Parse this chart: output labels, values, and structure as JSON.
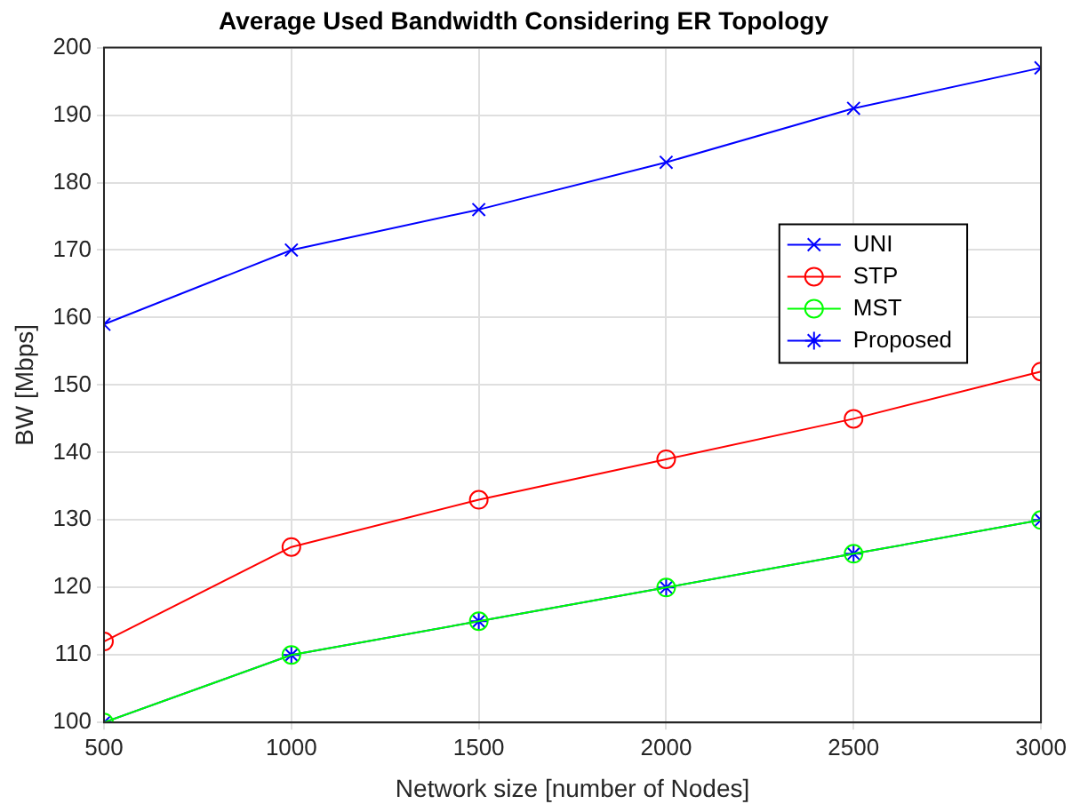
{
  "chart_data": {
    "type": "line",
    "title": "Average Used Bandwidth Considering ER Topology",
    "xlabel": "Network size [number of Nodes]",
    "ylabel": "BW [Mbps]",
    "x": [
      500,
      1000,
      1500,
      2000,
      2500,
      3000
    ],
    "xlim": [
      500,
      3000
    ],
    "xticks": [
      500,
      1000,
      1500,
      2000,
      2500,
      3000
    ],
    "ylim": [
      100,
      200
    ],
    "yticks": [
      100,
      110,
      120,
      130,
      140,
      150,
      160,
      170,
      180,
      190,
      200
    ],
    "grid": true,
    "legend": "right",
    "series": [
      {
        "name": "UNI",
        "color": "#0000ff",
        "marker": "cross",
        "values": [
          159,
          170,
          176,
          183,
          191,
          197
        ]
      },
      {
        "name": "STP",
        "color": "#ff0000",
        "marker": "circle",
        "values": [
          112,
          126,
          133,
          139,
          145,
          152
        ]
      },
      {
        "name": "MST",
        "color": "#00ff00",
        "marker": "circle",
        "values": [
          100,
          110,
          115,
          120,
          125,
          130
        ]
      },
      {
        "name": "Proposed",
        "color": "#0000ff",
        "marker": "cross",
        "values": [
          100,
          110,
          115,
          120,
          125,
          130
        ]
      }
    ]
  }
}
